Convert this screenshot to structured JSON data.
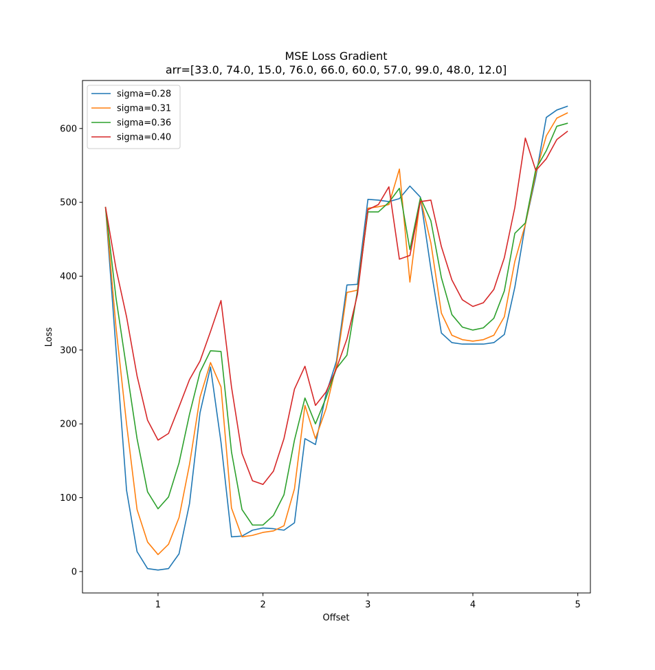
{
  "chart_data": {
    "type": "line",
    "title": "MSE Loss Gradient",
    "subtitle": "arr=[33.0, 74.0, 15.0, 76.0, 66.0, 60.0, 57.0, 99.0, 48.0, 12.0]",
    "xlabel": "Offset",
    "ylabel": "Loss",
    "xlim": [
      0.28,
      5.12
    ],
    "ylim": [
      -29,
      665
    ],
    "xticks": [
      1,
      2,
      3,
      4,
      5
    ],
    "yticks": [
      0,
      100,
      200,
      300,
      400,
      500,
      600
    ],
    "grid": false,
    "legend_position": "top-left",
    "x": [
      0.5,
      0.6,
      0.7,
      0.8,
      0.9,
      1.0,
      1.1,
      1.2,
      1.3,
      1.4,
      1.5,
      1.6,
      1.7,
      1.8,
      1.9,
      2.0,
      2.1,
      2.2,
      2.3,
      2.4,
      2.5,
      2.6,
      2.7,
      2.8,
      2.9,
      3.0,
      3.1,
      3.2,
      3.3,
      3.4,
      3.5,
      3.6,
      3.7,
      3.8,
      3.9,
      4.0,
      4.1,
      4.2,
      4.3,
      4.4,
      4.5,
      4.6,
      4.7,
      4.8,
      4.9
    ],
    "series": [
      {
        "name": "sigma=0.28",
        "color": "#1f77b4",
        "values": [
          493,
          300,
          110,
          27,
          4,
          2,
          4,
          24,
          92,
          215,
          277,
          175,
          47,
          48,
          56,
          59,
          58,
          56,
          66,
          180,
          172,
          240,
          285,
          388,
          389,
          504,
          503,
          501,
          505,
          522,
          507,
          410,
          323,
          310,
          308,
          308,
          308,
          310,
          321,
          385,
          470,
          535,
          615,
          625,
          630
        ]
      },
      {
        "name": "sigma=0.31",
        "color": "#ff7f0e",
        "values": [
          493,
          330,
          200,
          84,
          40,
          23,
          37,
          73,
          145,
          236,
          283,
          250,
          86,
          47,
          49,
          53,
          55,
          62,
          112,
          225,
          180,
          220,
          280,
          378,
          381,
          492,
          494,
          497,
          545,
          392,
          506,
          445,
          350,
          320,
          314,
          312,
          314,
          320,
          345,
          420,
          470,
          540,
          590,
          614,
          621
        ]
      },
      {
        "name": "sigma=0.36",
        "color": "#2ca02c",
        "values": [
          493,
          370,
          275,
          180,
          108,
          85,
          101,
          147,
          213,
          270,
          299,
          298,
          162,
          84,
          63,
          63,
          76,
          104,
          178,
          235,
          200,
          235,
          275,
          293,
          380,
          487,
          487,
          500,
          519,
          436,
          506,
          475,
          398,
          348,
          331,
          327,
          330,
          343,
          380,
          458,
          472,
          545,
          570,
          603,
          607
        ]
      },
      {
        "name": "sigma=0.40",
        "color": "#d62728",
        "values": [
          493,
          410,
          345,
          265,
          205,
          178,
          187,
          223,
          260,
          285,
          325,
          367,
          250,
          160,
          123,
          118,
          136,
          180,
          247,
          278,
          225,
          243,
          275,
          315,
          375,
          490,
          497,
          521,
          423,
          428,
          501,
          503,
          440,
          395,
          368,
          359,
          364,
          382,
          425,
          493,
          587,
          543,
          559,
          585,
          596
        ]
      }
    ]
  }
}
